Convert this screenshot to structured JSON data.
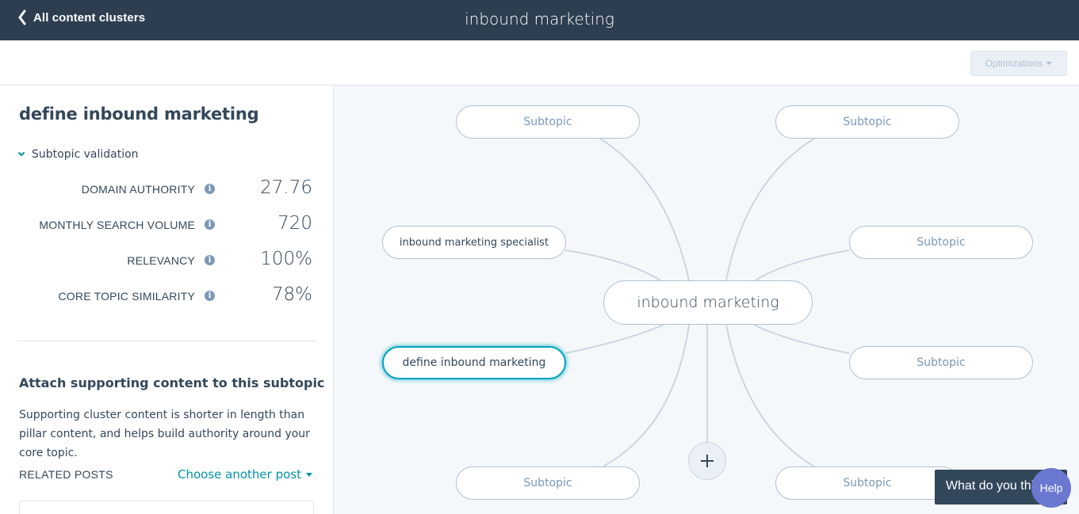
{
  "header": {
    "back_label": "All content clusters",
    "title": "inbound marketing"
  },
  "toolbar": {
    "optimizations_label": "Optimizations"
  },
  "sidebar": {
    "title": "define inbound marketing",
    "validation_label": "Subtopic validation",
    "metrics": [
      {
        "label": "DOMAIN AUTHORITY",
        "value": "27.76"
      },
      {
        "label": "MONTHLY SEARCH VOLUME",
        "value": "720"
      },
      {
        "label": "RELEVANCY",
        "value": "100%"
      },
      {
        "label": "CORE TOPIC SIMILARITY",
        "value": "78%"
      }
    ],
    "info_icon_glyph": "i",
    "attach_title": "Attach supporting content to this subtopic",
    "attach_desc": "Supporting cluster content is shorter in length than pillar content, and helps build authority around your core topic.",
    "related_label": "RELATED POSTS",
    "choose_label": "Choose another post"
  },
  "cluster": {
    "core_topic": "inbound marketing",
    "subtopics": [
      "Subtopic",
      "Subtopic",
      "inbound marketing specialist",
      "Subtopic",
      "define inbound marketing",
      "Subtopic",
      "Subtopic",
      "Subtopic"
    ],
    "add_glyph": "+"
  },
  "feedback": {
    "label": "What do you think?"
  },
  "help": {
    "label": "Help"
  },
  "colors": {
    "topbar": "#2d3e50",
    "accent": "#00a4bd",
    "link": "#0091ae",
    "help": "#6a78d1"
  },
  "icons": [
    "chevron-left-icon",
    "chevron-down-icon",
    "info-icon",
    "caret-down-icon",
    "plus-icon"
  ]
}
